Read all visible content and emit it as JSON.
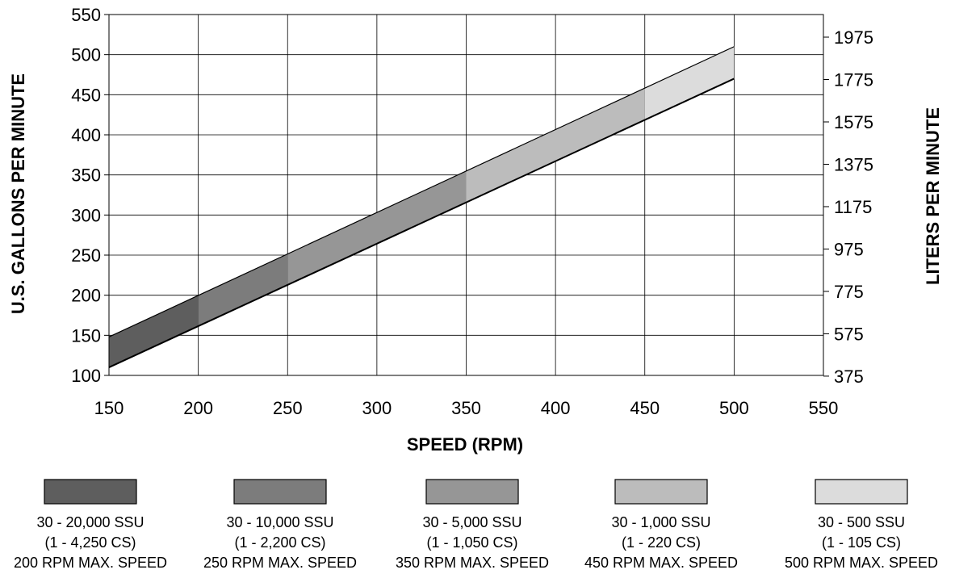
{
  "chart_data": {
    "type": "area",
    "xlabel": "SPEED (RPM)",
    "ylabel": "U.S. GALLONS PER MINUTE",
    "y2label": "LITERS PER MINUTE",
    "xlim": [
      150,
      550
    ],
    "ylim": [
      100,
      550
    ],
    "x_ticks": [
      150,
      200,
      250,
      300,
      350,
      400,
      450,
      500,
      550
    ],
    "y_ticks": [
      100,
      150,
      200,
      250,
      300,
      350,
      400,
      450,
      500,
      550
    ],
    "y2_ticks": [
      375,
      575,
      775,
      975,
      1175,
      1375,
      1575,
      1775,
      1975
    ],
    "grid": true,
    "band": {
      "x": [
        150,
        500
      ],
      "upper": [
        148,
        510
      ],
      "lower": [
        110,
        470
      ]
    },
    "series": [
      {
        "legend_line1": "30 - 20,000 SSU",
        "legend_line2": "(1 - 4,250 CS)",
        "legend_line3": "200 RPM MAX. SPEED",
        "x_range": [
          150,
          200
        ],
        "color": "#5e5e5e"
      },
      {
        "legend_line1": "30 - 10,000 SSU",
        "legend_line2": "(1 - 2,200 CS)",
        "legend_line3": "250 RPM MAX. SPEED",
        "x_range": [
          200,
          250
        ],
        "color": "#7c7c7c"
      },
      {
        "legend_line1": "30 - 5,000 SSU",
        "legend_line2": "(1 - 1,050 CS)",
        "legend_line3": "350 RPM MAX. SPEED",
        "x_range": [
          250,
          350
        ],
        "color": "#969696"
      },
      {
        "legend_line1": "30 - 1,000 SSU",
        "legend_line2": "(1 - 220 CS)",
        "legend_line3": "450 RPM MAX. SPEED",
        "x_range": [
          350,
          450
        ],
        "color": "#bcbcbc"
      },
      {
        "legend_line1": "30 - 500 SSU",
        "legend_line2": "(1 - 105 CS)",
        "legend_line3": "500 RPM MAX. SPEED",
        "x_range": [
          450,
          500
        ],
        "color": "#dcdcdc"
      }
    ]
  }
}
